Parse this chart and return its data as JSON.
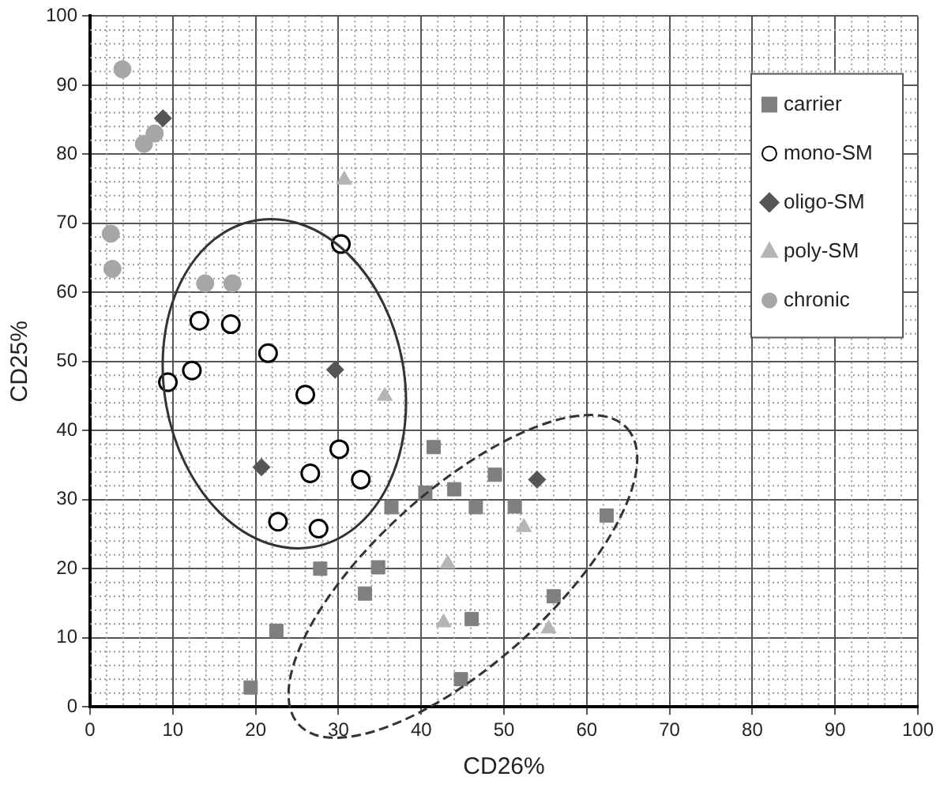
{
  "chart_data": {
    "type": "scatter",
    "xlabel": "CD26%",
    "ylabel": "CD25%",
    "xlim": [
      0,
      100
    ],
    "ylim": [
      0,
      100
    ],
    "xticks": [
      0,
      10,
      20,
      30,
      40,
      50,
      60,
      70,
      80,
      90,
      100
    ],
    "yticks": [
      0,
      10,
      20,
      30,
      40,
      50,
      60,
      70,
      80,
      90,
      100
    ],
    "grid": true,
    "legend": "top right",
    "series": [
      {
        "name": "carrier",
        "color": "#7f7f7f",
        "marker": "square",
        "x": [
          19.4,
          22.5,
          27.8,
          33.2,
          34.8,
          36.4,
          40.5,
          41.5,
          44,
          46.6,
          48.9,
          51.3,
          62.4,
          46.1,
          56,
          44.8
        ],
        "values": [
          2.8,
          11,
          20,
          16.4,
          20.2,
          28.9,
          31,
          37.6,
          31.5,
          28.9,
          33.6,
          29,
          27.7,
          12.7,
          16,
          4
        ]
      },
      {
        "name": "mono-SM",
        "color": "#000000",
        "marker": "circle",
        "x": [
          9.4,
          12.3,
          13.2,
          17,
          21.5,
          26,
          30.3,
          30.1,
          26.6,
          32.7,
          22.7,
          27.6
        ],
        "values": [
          47,
          48.7,
          55.9,
          55.4,
          51.2,
          45.2,
          67,
          37.3,
          33.8,
          32.9,
          26.8,
          25.8
        ]
      },
      {
        "name": "oligo-SM",
        "color": "#555555",
        "marker": "diamond",
        "x": [
          8.8,
          29.6,
          20.7,
          54
        ],
        "values": [
          85.2,
          48.8,
          34.7,
          32.9
        ]
      },
      {
        "name": "poly-SM",
        "color": "#b5b5b5",
        "marker": "triangle",
        "x": [
          30.7,
          35.6,
          43.2,
          42.7,
          52.4,
          55.4
        ],
        "values": [
          76.3,
          45,
          20.7,
          12.2,
          26,
          11.3
        ]
      },
      {
        "name": "chronic",
        "color": "#a6a6a6",
        "marker": "circle",
        "x": [
          3.9,
          6.5,
          7.8,
          2.5,
          2.7,
          13.9,
          17.2
        ],
        "values": [
          92.3,
          81.5,
          83,
          68.5,
          63.4,
          61.3,
          61.3
        ]
      }
    ]
  }
}
